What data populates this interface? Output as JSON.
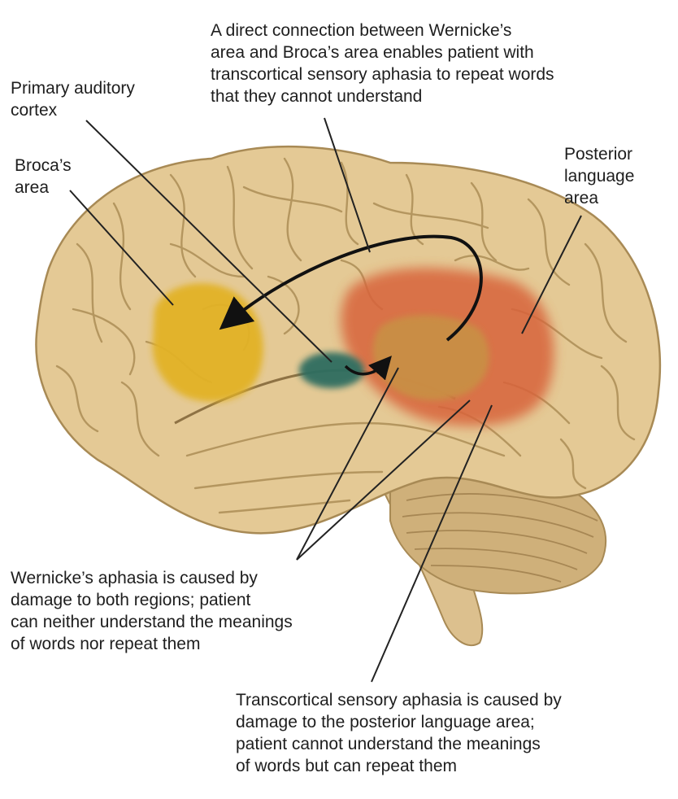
{
  "labels": {
    "direct_connection": "A direct connection between Wernicke’s\narea and Broca’s area enables patient with\ntranscortical sensory aphasia to repeat words\nthat they cannot understand",
    "primary_auditory_cortex": "Primary auditory\ncortex",
    "brocas_area": "Broca’s\narea",
    "posterior_language_area": "Posterior\nlanguage\narea",
    "wernickes_aphasia": "Wernicke’s aphasia is caused by\ndamage to both regions; patient\ncan neither understand the meanings\nof words nor repeat them",
    "transcortical_sensory_aphasia": "Transcortical sensory aphasia is caused by\ndamage to the posterior language area;\npatient cannot understand the meanings\nof words but can repeat them"
  },
  "colors": {
    "brain_fill": "#e4c995",
    "brain_outline": "#a88a55",
    "gyri_lines": "#b4965f",
    "brocas_area": "#e2b227",
    "primary_auditory_cortex": "#2f6d60",
    "posterior_language_area": "#d8643a",
    "wernickes_area": "#c98f45",
    "cerebellum": "#cfb07a",
    "brainstem": "#dcc08e",
    "leader_lines": "#222222",
    "arrows": "#111111"
  }
}
